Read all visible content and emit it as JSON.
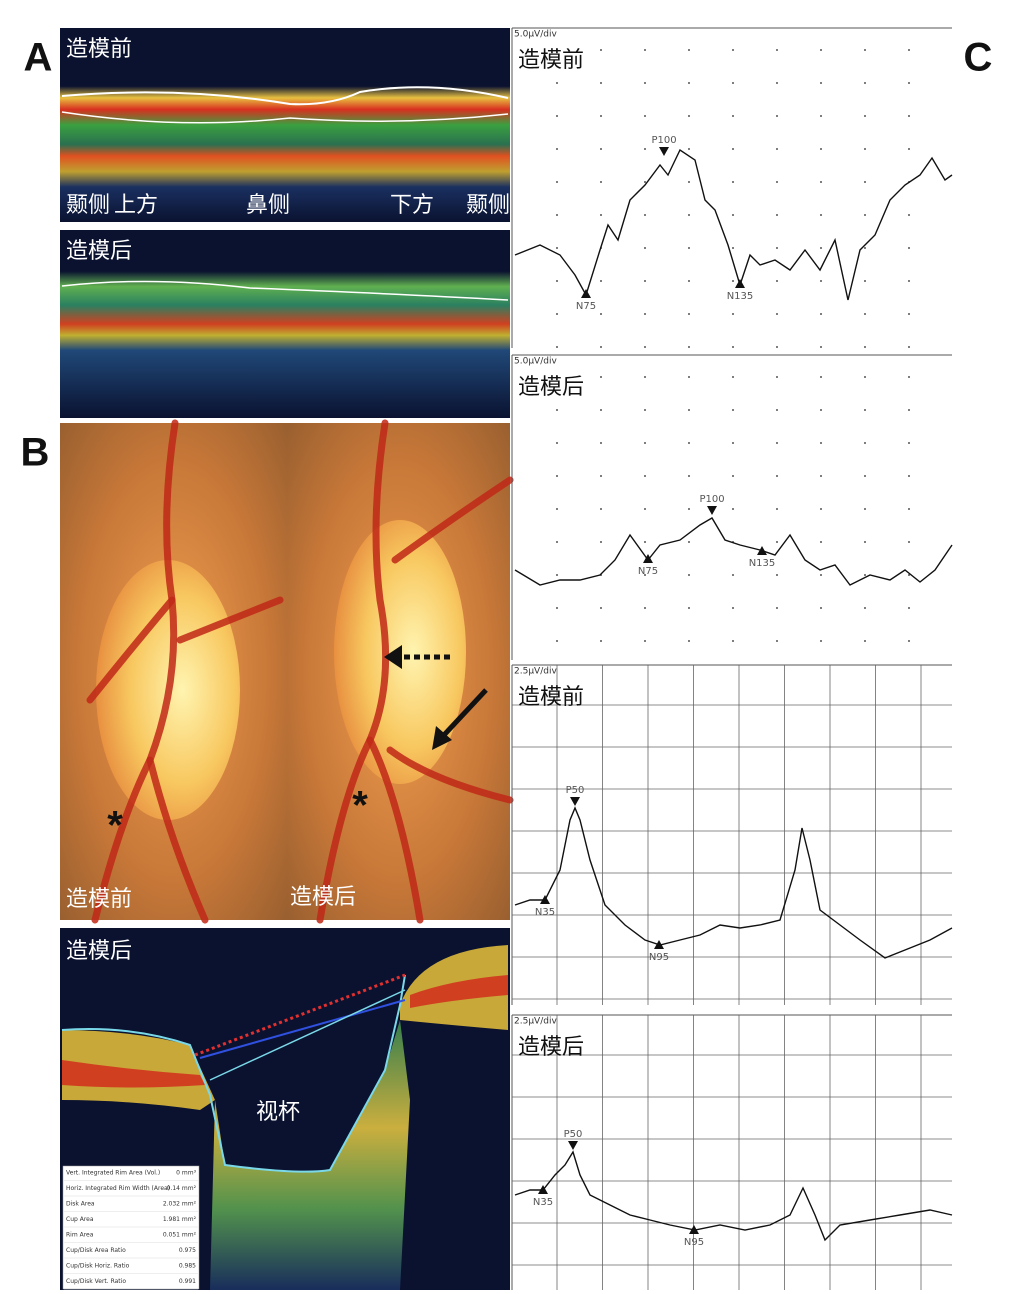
{
  "panel_labels": [
    "A",
    "B",
    "C"
  ],
  "panel_a": {
    "before": {
      "label": "造模前",
      "directions": [
        "颞侧",
        "上方",
        "鼻侧",
        "下方",
        "颞侧"
      ]
    },
    "after": {
      "label": "造模后"
    }
  },
  "panel_b": {
    "fundus": {
      "left_label": "造模前",
      "right_label": "造模后",
      "marker": "*"
    },
    "oct": {
      "label": "造模后",
      "cup_label": "视杯",
      "measurements": [
        {
          "name": "Vert. Integrated Rim Area (Vol.)",
          "value": "0 mm³"
        },
        {
          "name": "Horiz. Integrated Rim Width (Area)",
          "value": "0.14 mm²"
        },
        {
          "name": "Disk Area",
          "value": "2.032 mm²"
        },
        {
          "name": "Cup Area",
          "value": "1.981 mm²"
        },
        {
          "name": "Rim Area",
          "value": "0.051 mm²"
        },
        {
          "name": "Cup/Disk Area Ratio",
          "value": "0.975"
        },
        {
          "name": "Cup/Disk Horiz. Ratio",
          "value": "0.985"
        },
        {
          "name": "Cup/Disk Vert. Ratio",
          "value": "0.991"
        }
      ]
    }
  },
  "panel_c": {
    "traces": [
      {
        "scale": "5.0μV/div",
        "label": "造模前",
        "peaks": [
          "N75",
          "P100",
          "N135"
        ]
      },
      {
        "scale": "5.0μV/div",
        "label": "造模后",
        "peaks": [
          "N75",
          "P100",
          "N135"
        ]
      },
      {
        "scale": "2.5μV/div",
        "label": "造模前",
        "peaks": [
          "N35",
          "P50",
          "N95"
        ]
      },
      {
        "scale": "2.5μV/div",
        "label": "造模后",
        "peaks": [
          "N35",
          "P50",
          "N95"
        ]
      }
    ]
  }
}
